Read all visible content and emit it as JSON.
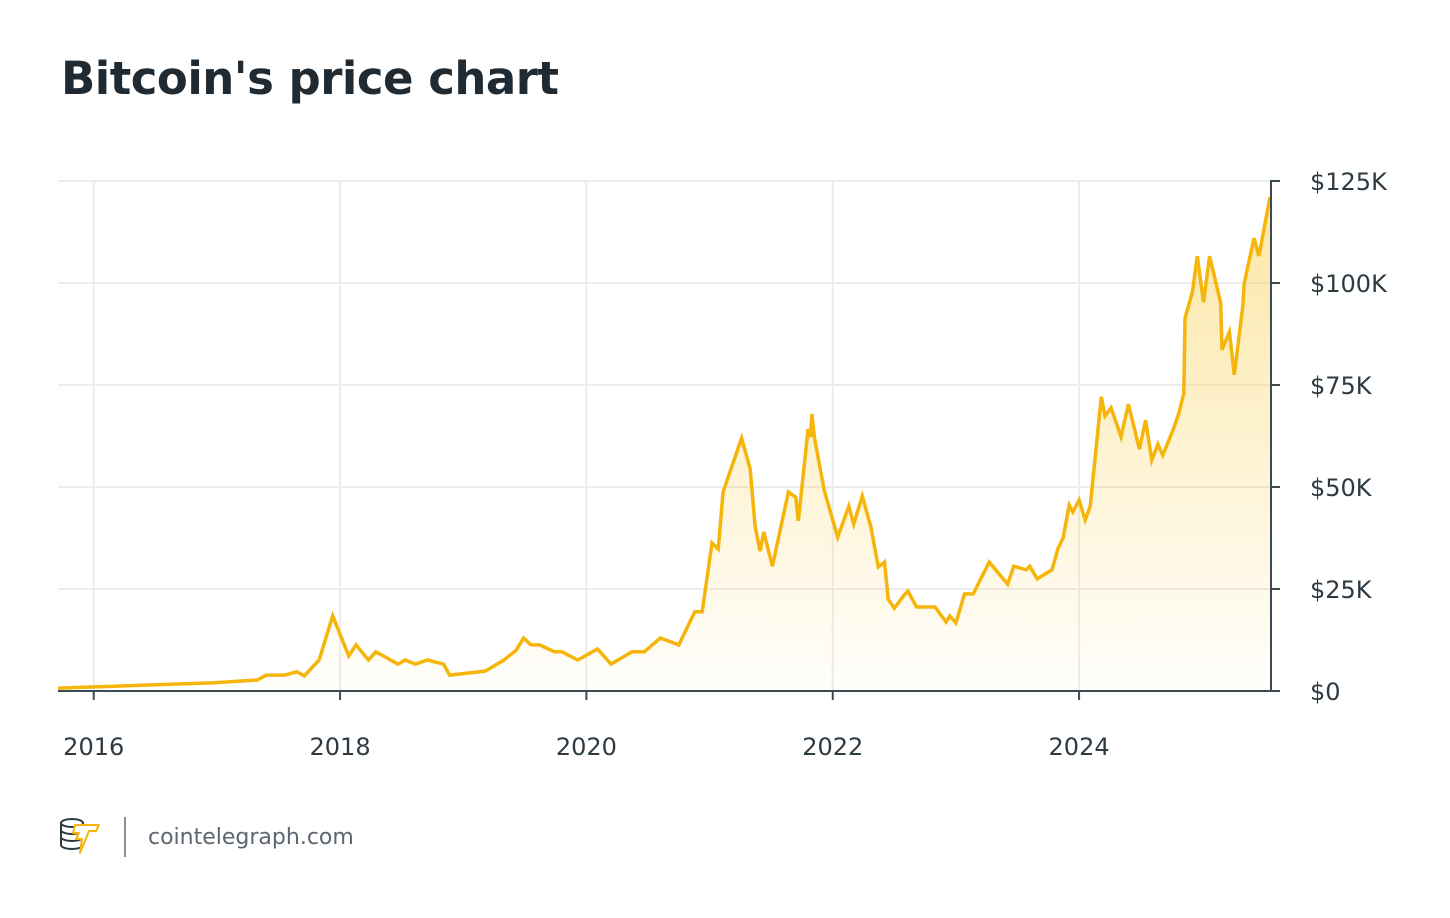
{
  "chart_data": {
    "type": "area",
    "title": "Bitcoin's price chart",
    "xlabel": "",
    "ylabel": "",
    "x_ticks": [
      "2016",
      "2018",
      "2020",
      "2022",
      "2024"
    ],
    "y_ticks": [
      "$0",
      "$25K",
      "$50K",
      "$75K",
      "$100K",
      "$125K"
    ],
    "y_tick_values": [
      0,
      25,
      50,
      75,
      100,
      125
    ],
    "x_tick_values": [
      2016,
      2018,
      2020,
      2022,
      2024
    ],
    "xlim": [
      2015.71,
      2025.55
    ],
    "ylim": [
      0,
      125
    ],
    "y_unit": "thousand USD",
    "y_axis_side": "right",
    "grid": true,
    "colors": {
      "line": "#f5b50a",
      "fill": "#f8c93a",
      "grid": "#ececec",
      "axis": "#3d4a52"
    },
    "series": [
      {
        "x": [
          2015.71,
          2016.98,
          2017.33,
          2017.4,
          2017.55,
          2017.65,
          2017.71,
          2017.83,
          2017.94,
          2018.07,
          2018.13,
          2018.23,
          2018.29,
          2018.47,
          2018.53,
          2018.61,
          2018.71,
          2018.84,
          2018.89,
          2019.18,
          2019.33,
          2019.43,
          2019.49,
          2019.55,
          2019.62,
          2019.74,
          2019.8,
          2019.93,
          2020.09,
          2020.2,
          2020.37,
          2020.47,
          2020.6,
          2020.75,
          2020.88,
          2020.94,
          2021.02,
          2021.07,
          2021.11,
          2021.26,
          2021.33,
          2021.37,
          2021.41,
          2021.44,
          2021.51,
          2021.64,
          2021.7,
          2021.72,
          2021.8,
          2021.82,
          2021.83,
          2021.85,
          2021.93,
          2022.04,
          2022.13,
          2022.17,
          2022.24,
          2022.31,
          2022.37,
          2022.42,
          2022.45,
          2022.5,
          2022.58,
          2022.61,
          2022.68,
          2022.83,
          2022.92,
          2022.95,
          2023.0,
          2023.07,
          2023.14,
          2023.27,
          2023.42,
          2023.47,
          2023.57,
          2023.6,
          2023.66,
          2023.78,
          2023.83,
          2023.87,
          2023.92,
          2023.95,
          2024.0,
          2024.05,
          2024.09,
          2024.18,
          2024.21,
          2024.26,
          2024.34,
          2024.4,
          2024.49,
          2024.54,
          2024.59,
          2024.64,
          2024.68,
          2024.77,
          2024.81,
          2024.85,
          2024.86,
          2024.92,
          2024.96,
          2025.01,
          2025.06,
          2025.15,
          2025.16,
          2025.22,
          2025.26,
          2025.33,
          2025.34,
          2025.42,
          2025.46,
          2025.55
        ],
        "y": [
          0.7,
          2.0,
          2.7,
          3.9,
          3.9,
          4.7,
          3.7,
          7.6,
          18.4,
          8.6,
          11.3,
          7.6,
          9.6,
          6.6,
          7.6,
          6.6,
          7.6,
          6.6,
          3.9,
          4.9,
          7.6,
          10.0,
          13.0,
          11.3,
          11.3,
          9.6,
          9.6,
          7.6,
          10.3,
          6.6,
          9.6,
          9.6,
          13.0,
          11.3,
          19.4,
          19.4,
          36.3,
          34.8,
          48.8,
          62.0,
          54.4,
          40.4,
          34.3,
          39.0,
          30.6,
          48.8,
          47.5,
          41.7,
          64.2,
          62.3,
          67.9,
          62.3,
          49.3,
          37.7,
          45.3,
          40.9,
          47.8,
          40.2,
          30.4,
          31.6,
          22.5,
          20.3,
          23.5,
          24.5,
          20.6,
          20.6,
          16.9,
          18.4,
          16.7,
          23.8,
          23.8,
          31.6,
          26.2,
          30.6,
          29.7,
          30.6,
          27.5,
          29.7,
          35.0,
          37.5,
          45.6,
          43.9,
          46.8,
          41.9,
          45.3,
          72.1,
          67.4,
          69.4,
          62.3,
          70.3,
          59.3,
          66.4,
          56.6,
          60.5,
          57.8,
          64.5,
          68.1,
          73.0,
          91.4,
          97.8,
          106.6,
          95.3,
          106.6,
          95.1,
          83.6,
          88.0,
          77.5,
          94.6,
          99.8,
          111.0,
          106.6,
          121.1
        ]
      }
    ]
  },
  "footer": {
    "logo_icon": "cointelegraph-logo-icon",
    "site": "cointelegraph.com"
  }
}
